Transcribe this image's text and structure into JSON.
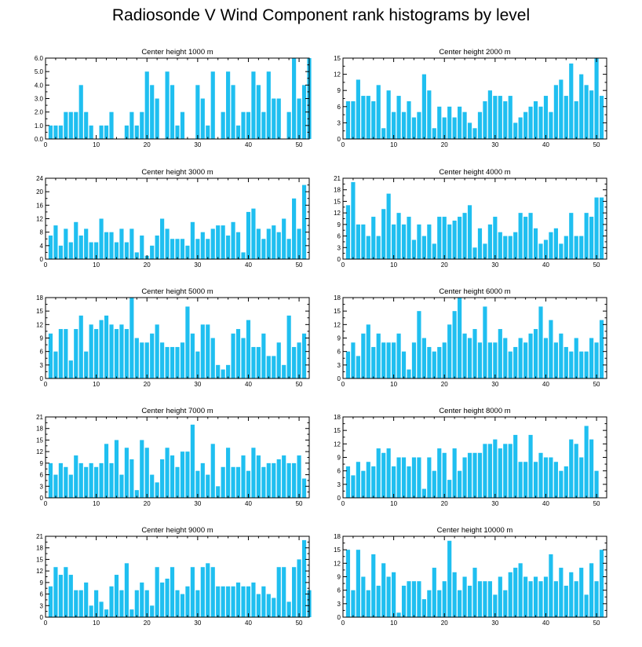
{
  "title": "Radiosonde V Wind Component rank histograms by level",
  "colors": {
    "bar": "#1fbff0",
    "frame": "#000000"
  },
  "chart_data": [
    {
      "type": "bar",
      "title": "Center height 1000 m",
      "xlim": [
        0,
        52
      ],
      "ylim": [
        0,
        6
      ],
      "xticks": [
        0,
        10,
        20,
        30,
        40,
        50
      ],
      "yticks": [
        0,
        1,
        2,
        3,
        4,
        5,
        6
      ],
      "yticklabels": [
        "0.0",
        "1.0",
        "2.0",
        "3.0",
        "4.0",
        "5.0",
        "6.0"
      ],
      "values": [
        0,
        1,
        1,
        1,
        2,
        2,
        2,
        4,
        2,
        1,
        0,
        1,
        1,
        2,
        0,
        0,
        1,
        2,
        1,
        2,
        5,
        4,
        3,
        0,
        5,
        4,
        1,
        2,
        0,
        0,
        4,
        3,
        1,
        5,
        0,
        2,
        5,
        4,
        1,
        2,
        2,
        5,
        4,
        2,
        5,
        3,
        3,
        0,
        2,
        6,
        3,
        4,
        6
      ]
    },
    {
      "type": "bar",
      "title": "Center height 2000 m",
      "xlim": [
        0,
        52
      ],
      "ylim": [
        0,
        15
      ],
      "xticks": [
        0,
        10,
        20,
        30,
        40,
        50
      ],
      "yticks": [
        0,
        3,
        6,
        9,
        12,
        15
      ],
      "values": [
        0,
        7,
        7,
        11,
        8,
        8,
        7,
        10,
        2,
        9,
        5,
        8,
        5,
        7,
        4,
        5,
        12,
        9,
        2,
        6,
        4,
        6,
        4,
        6,
        5,
        3,
        2,
        5,
        7,
        9,
        8,
        8,
        7,
        8,
        3,
        4,
        5,
        6,
        7,
        6,
        8,
        5,
        10,
        11,
        8,
        14,
        7,
        12,
        10,
        9,
        15,
        8
      ]
    },
    {
      "type": "bar",
      "title": "Center height 3000 m",
      "xlim": [
        0,
        52
      ],
      "ylim": [
        0,
        24
      ],
      "xticks": [
        0,
        10,
        20,
        30,
        40,
        50
      ],
      "yticks": [
        0,
        4,
        8,
        12,
        16,
        20,
        24
      ],
      "values": [
        0,
        7,
        10,
        4,
        9,
        5,
        11,
        7,
        9,
        5,
        5,
        12,
        8,
        8,
        5,
        9,
        5,
        9,
        2,
        7,
        1,
        4,
        7,
        12,
        9,
        6,
        6,
        6,
        4,
        11,
        6,
        8,
        6,
        9,
        10,
        10,
        7,
        11,
        8,
        2,
        14,
        15,
        9,
        6,
        9,
        10,
        8,
        12,
        6,
        18,
        9,
        22
      ]
    },
    {
      "type": "bar",
      "title": "Center height 4000 m",
      "xlim": [
        0,
        52
      ],
      "ylim": [
        0,
        21
      ],
      "xticks": [
        0,
        10,
        20,
        30,
        40,
        50
      ],
      "yticks": [
        0,
        3,
        6,
        9,
        12,
        15,
        18,
        21
      ],
      "values": [
        0,
        14,
        20,
        9,
        9,
        6,
        11,
        6,
        13,
        17,
        9,
        12,
        9,
        11,
        5,
        9,
        6,
        9,
        4,
        11,
        11,
        9,
        10,
        11,
        12,
        14,
        3,
        8,
        4,
        9,
        11,
        7,
        6,
        6,
        7,
        12,
        11,
        12,
        8,
        4,
        5,
        7,
        8,
        4,
        6,
        12,
        6,
        6,
        12,
        11,
        16,
        16
      ]
    },
    {
      "type": "bar",
      "title": "Center height 5000 m",
      "xlim": [
        0,
        52
      ],
      "ylim": [
        0,
        18
      ],
      "xticks": [
        0,
        10,
        20,
        30,
        40,
        50
      ],
      "yticks": [
        0,
        3,
        6,
        9,
        12,
        15,
        18
      ],
      "values": [
        0,
        10,
        6,
        11,
        11,
        4,
        11,
        14,
        6,
        12,
        11,
        13,
        14,
        12,
        11,
        12,
        11,
        18,
        9,
        8,
        8,
        10,
        12,
        8,
        7,
        7,
        7,
        8,
        16,
        10,
        6,
        12,
        12,
        9,
        3,
        2,
        3,
        10,
        11,
        9,
        13,
        7,
        7,
        10,
        5,
        5,
        8,
        3,
        14,
        7,
        8,
        10
      ]
    },
    {
      "type": "bar",
      "title": "Center height 6000 m",
      "xlim": [
        0,
        52
      ],
      "ylim": [
        0,
        18
      ],
      "xticks": [
        0,
        10,
        20,
        30,
        40,
        50
      ],
      "yticks": [
        0,
        3,
        6,
        9,
        12,
        15,
        18
      ],
      "values": [
        0,
        6,
        8,
        5,
        10,
        12,
        7,
        10,
        8,
        8,
        8,
        10,
        6,
        2,
        8,
        15,
        9,
        7,
        6,
        7,
        8,
        12,
        15,
        18,
        10,
        9,
        11,
        8,
        16,
        8,
        8,
        11,
        9,
        6,
        7,
        9,
        8,
        10,
        11,
        16,
        9,
        13,
        8,
        10,
        7,
        6,
        9,
        6,
        6,
        9,
        8,
        13
      ]
    },
    {
      "type": "bar",
      "title": "Center height 7000 m",
      "xlim": [
        0,
        52
      ],
      "ylim": [
        0,
        21
      ],
      "xticks": [
        0,
        10,
        20,
        30,
        40,
        50
      ],
      "yticks": [
        0,
        3,
        6,
        9,
        12,
        15,
        18,
        21
      ],
      "values": [
        0,
        9,
        6,
        9,
        8,
        6,
        11,
        9,
        8,
        9,
        8,
        9,
        14,
        9,
        15,
        6,
        13,
        10,
        2,
        15,
        13,
        6,
        4,
        10,
        13,
        11,
        8,
        12,
        12,
        19,
        7,
        9,
        6,
        14,
        3,
        8,
        13,
        8,
        8,
        11,
        7,
        13,
        11,
        8,
        9,
        9,
        10,
        11,
        9,
        9,
        11,
        5
      ]
    },
    {
      "type": "bar",
      "title": "Center height 8000 m",
      "xlim": [
        0,
        52
      ],
      "ylim": [
        0,
        18
      ],
      "xticks": [
        0,
        10,
        20,
        30,
        40,
        50
      ],
      "yticks": [
        0,
        3,
        6,
        9,
        12,
        15,
        18
      ],
      "values": [
        0,
        7,
        5,
        8,
        6,
        8,
        7,
        11,
        10,
        11,
        7,
        9,
        9,
        7,
        9,
        9,
        2,
        9,
        6,
        11,
        10,
        4,
        11,
        6,
        9,
        10,
        10,
        10,
        12,
        12,
        13,
        11,
        12,
        12,
        14,
        8,
        8,
        14,
        8,
        10,
        9,
        9,
        8,
        6,
        7,
        13,
        12,
        9,
        16,
        13,
        6
      ]
    },
    {
      "type": "bar",
      "title": "Center height 9000 m",
      "xlim": [
        0,
        52
      ],
      "ylim": [
        0,
        21
      ],
      "xticks": [
        0,
        10,
        20,
        30,
        40,
        50
      ],
      "yticks": [
        0,
        3,
        6,
        9,
        12,
        15,
        18,
        21
      ],
      "values": [
        0,
        8,
        13,
        11,
        13,
        11,
        7,
        7,
        9,
        3,
        7,
        4,
        2,
        8,
        11,
        7,
        14,
        2,
        7,
        9,
        7,
        3,
        13,
        9,
        10,
        13,
        7,
        6,
        8,
        13,
        7,
        13,
        14,
        13,
        8,
        8,
        8,
        8,
        9,
        8,
        8,
        9,
        6,
        8,
        6,
        5,
        13,
        13,
        4,
        13,
        15,
        20,
        7
      ]
    },
    {
      "type": "bar",
      "title": "Center height 10000 m",
      "xlim": [
        0,
        52
      ],
      "ylim": [
        0,
        18
      ],
      "xticks": [
        0,
        10,
        20,
        30,
        40,
        50
      ],
      "yticks": [
        0,
        3,
        6,
        9,
        12,
        15,
        18
      ],
      "values": [
        0,
        15,
        6,
        15,
        9,
        6,
        14,
        7,
        12,
        9,
        10,
        1,
        7,
        8,
        8,
        8,
        4,
        6,
        11,
        6,
        8,
        17,
        10,
        6,
        9,
        7,
        11,
        8,
        8,
        8,
        5,
        9,
        6,
        10,
        11,
        12,
        9,
        8,
        9,
        8,
        9,
        14,
        8,
        11,
        7,
        10,
        8,
        11,
        5,
        12,
        8,
        15
      ]
    }
  ]
}
